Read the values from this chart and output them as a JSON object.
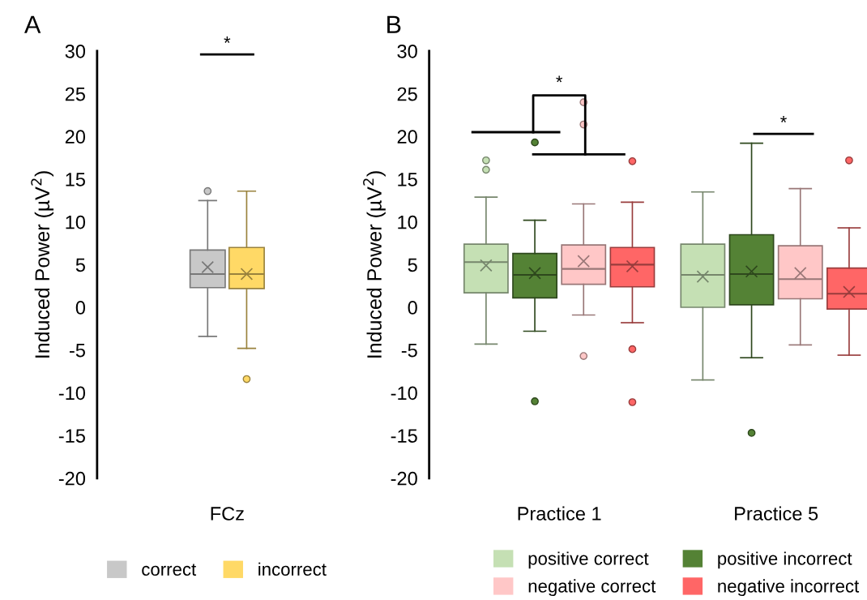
{
  "chart_data": [
    {
      "type": "box",
      "title": "A",
      "ylabel": "Induced Power (µV$^{2}$)",
      "categories": [
        "FCz"
      ],
      "ylim": [
        -20,
        30
      ],
      "yticks": [
        -20,
        -15,
        -10,
        -5,
        0,
        5,
        10,
        15,
        20,
        25,
        30
      ],
      "legend": "bottom",
      "grid": false,
      "annotations": [
        "*"
      ],
      "series": [
        {
          "name": "correct",
          "color": "#c8c8c8",
          "boxes": [
            {
              "low": -3.4,
              "q1": 2.3,
              "median": 3.9,
              "q3": 6.7,
              "high": 12.5,
              "mean": 4.7,
              "outliers": [
                13.6
              ]
            }
          ]
        },
        {
          "name": "incorrect",
          "color": "#ffd966",
          "boxes": [
            {
              "low": -4.8,
              "q1": 2.2,
              "median": 3.9,
              "q3": 7.0,
              "high": 13.6,
              "mean": 3.9,
              "outliers": [
                -8.4
              ]
            }
          ]
        }
      ]
    },
    {
      "type": "box",
      "title": "B",
      "ylabel": "Induced Power (µV$^{2}$)",
      "categories": [
        "Practice 1",
        "Practice 5"
      ],
      "ylim": [
        -20,
        30
      ],
      "yticks": [
        -20,
        -15,
        -10,
        -5,
        0,
        5,
        10,
        15,
        20,
        25,
        30
      ],
      "legend": "bottom",
      "grid": false,
      "annotations": [
        "*",
        "*"
      ],
      "series": [
        {
          "name": "positive correct",
          "color": "#c5e0b4",
          "boxes": [
            {
              "low": -4.3,
              "q1": 1.7,
              "median": 5.3,
              "q3": 7.4,
              "high": 12.9,
              "mean": 4.9,
              "outliers": [
                17.2,
                16.1
              ]
            },
            {
              "low": -8.5,
              "q1": 0.0,
              "median": 3.8,
              "q3": 7.4,
              "high": 13.5,
              "mean": 3.6
            }
          ]
        },
        {
          "name": "positive incorrect",
          "color": "#548235",
          "boxes": [
            {
              "low": -2.8,
              "q1": 1.1,
              "median": 3.8,
              "q3": 6.3,
              "high": 10.2,
              "mean": 4.0,
              "outliers": [
                19.3,
                -11.0
              ]
            },
            {
              "low": -5.9,
              "q1": 0.3,
              "median": 3.9,
              "q3": 8.5,
              "high": 19.2,
              "mean": 4.2,
              "outliers": [
                -14.7
              ]
            }
          ]
        },
        {
          "name": "negative correct",
          "color": "#ffc7c7",
          "boxes": [
            {
              "low": -0.9,
              "q1": 2.7,
              "median": 4.5,
              "q3": 7.3,
              "high": 12.1,
              "mean": 5.4,
              "outliers": [
                24.0,
                21.4,
                -5.7
              ]
            },
            {
              "low": -4.4,
              "q1": 1.0,
              "median": 3.3,
              "q3": 7.2,
              "high": 13.9,
              "mean": 4.0
            }
          ]
        },
        {
          "name": "negative incorrect",
          "color": "#ff6666",
          "boxes": [
            {
              "low": -1.8,
              "q1": 2.4,
              "median": 5.0,
              "q3": 7.0,
              "high": 12.3,
              "mean": 4.8,
              "outliers": [
                17.1,
                -4.9,
                -11.1
              ]
            },
            {
              "low": -5.6,
              "q1": -0.2,
              "median": 1.6,
              "q3": 4.6,
              "high": 9.3,
              "mean": 1.8,
              "outliers": [
                17.2
              ]
            }
          ]
        }
      ]
    }
  ]
}
